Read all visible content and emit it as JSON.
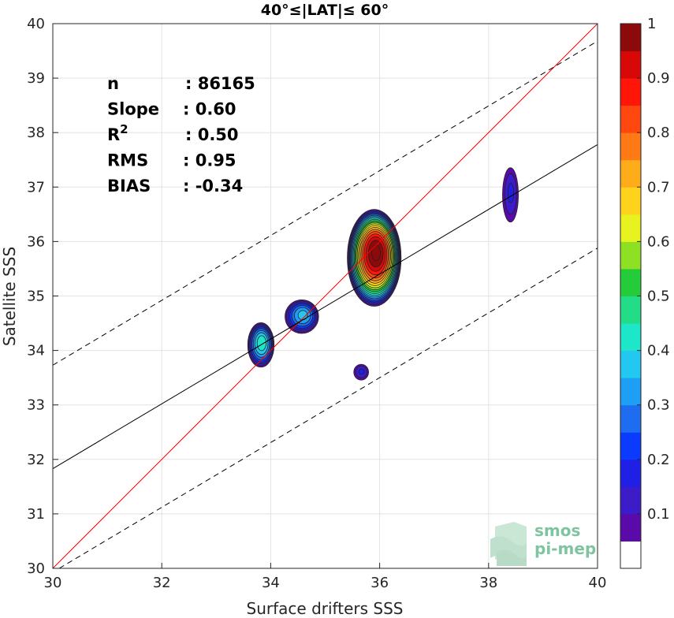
{
  "chart_data": {
    "type": "heatmap",
    "subtype": "density-contour scatter comparison",
    "title": "40°≤|LAT|≤ 60°",
    "xlabel": "Surface drifters SSS",
    "ylabel": "Satellite SSS",
    "xlim": [
      30,
      40
    ],
    "ylim": [
      30,
      40
    ],
    "xticks": [
      30,
      32,
      34,
      36,
      38,
      40
    ],
    "yticks": [
      30,
      31,
      32,
      33,
      34,
      35,
      36,
      37,
      38,
      39,
      40
    ],
    "grid": true,
    "stats": [
      {
        "label": "n",
        "value": ": 86165"
      },
      {
        "label": "Slope",
        "value": ": 0.60"
      },
      {
        "label": "R",
        "sup": "2",
        "value": ": 0.50"
      },
      {
        "label": "RMS",
        "value": ": 0.95"
      },
      {
        "label": "BIAS",
        "value": ": -0.34"
      }
    ],
    "lines": {
      "identity": {
        "slope": 1.0,
        "intercept": 0.0,
        "color": "#ff0000"
      },
      "fit": {
        "slope": 0.595,
        "intercept": 13.98,
        "color": "#000000"
      },
      "fit_upper": {
        "slope": 0.595,
        "intercept": 15.88,
        "dashed": true
      },
      "fit_lower": {
        "slope": 0.595,
        "intercept": 12.08,
        "dashed": true
      }
    },
    "density_blobs": [
      {
        "cx": 35.9,
        "cy": 35.7,
        "rx": 0.5,
        "ry": 0.9,
        "peak": 1.0
      },
      {
        "cx": 34.57,
        "cy": 34.62,
        "rx": 0.32,
        "ry": 0.32,
        "peak": 0.35
      },
      {
        "cx": 33.82,
        "cy": 34.1,
        "rx": 0.25,
        "ry": 0.42,
        "peak": 0.42
      },
      {
        "cx": 38.4,
        "cy": 36.85,
        "rx": 0.16,
        "ry": 0.55,
        "peak": 0.14
      },
      {
        "cx": 35.66,
        "cy": 33.6,
        "rx": 0.15,
        "ry": 0.16,
        "peak": 0.14
      }
    ],
    "colorbar": {
      "min": 0,
      "max": 1,
      "ticks": [
        "0.1",
        "0.2",
        "0.3",
        "0.4",
        "0.5",
        "0.6",
        "0.7",
        "0.8",
        "0.9",
        "1"
      ],
      "colors": [
        "#ffffff",
        "#5a0aa8",
        "#3c1bc8",
        "#1f1fe6",
        "#0a3bff",
        "#1e6cf0",
        "#1f9ef5",
        "#22c8f0",
        "#1ee6c8",
        "#22dc88",
        "#24cc3a",
        "#8ee022",
        "#e8f21e",
        "#ffd21e",
        "#ffac1a",
        "#ff7a14",
        "#ff4810",
        "#ff1608",
        "#d80808",
        "#8c0a0a"
      ]
    }
  },
  "logo": {
    "line1": "smos",
    "line2": "pi-mep"
  }
}
